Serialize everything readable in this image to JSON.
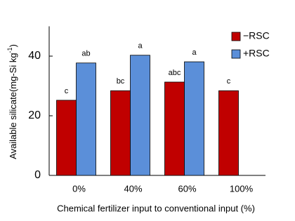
{
  "chart_data": {
    "type": "bar",
    "ylabel": "Available silicate(mg-Si kg",
    "ylabel_superscript": "-1",
    "ylabel_suffix": ")",
    "xlabel": "Chemical fertilizer input to conventional input (%)",
    "categories": [
      "0%",
      "40%",
      "60%",
      "100%"
    ],
    "series": [
      {
        "name": "−RSC",
        "color": "#c00000",
        "values": [
          25.2,
          28.4,
          31.3,
          28.4
        ],
        "significance": [
          "c",
          "bc",
          "abc",
          "c"
        ]
      },
      {
        "name": "+RSC",
        "color": "#5b8fd9",
        "values": [
          37.7,
          40.3,
          38.1,
          null
        ],
        "significance": [
          "ab",
          "a",
          "a",
          null
        ]
      }
    ],
    "ylim": [
      0,
      50
    ],
    "yticks": [
      0,
      20,
      40
    ],
    "legend": "upper right"
  }
}
